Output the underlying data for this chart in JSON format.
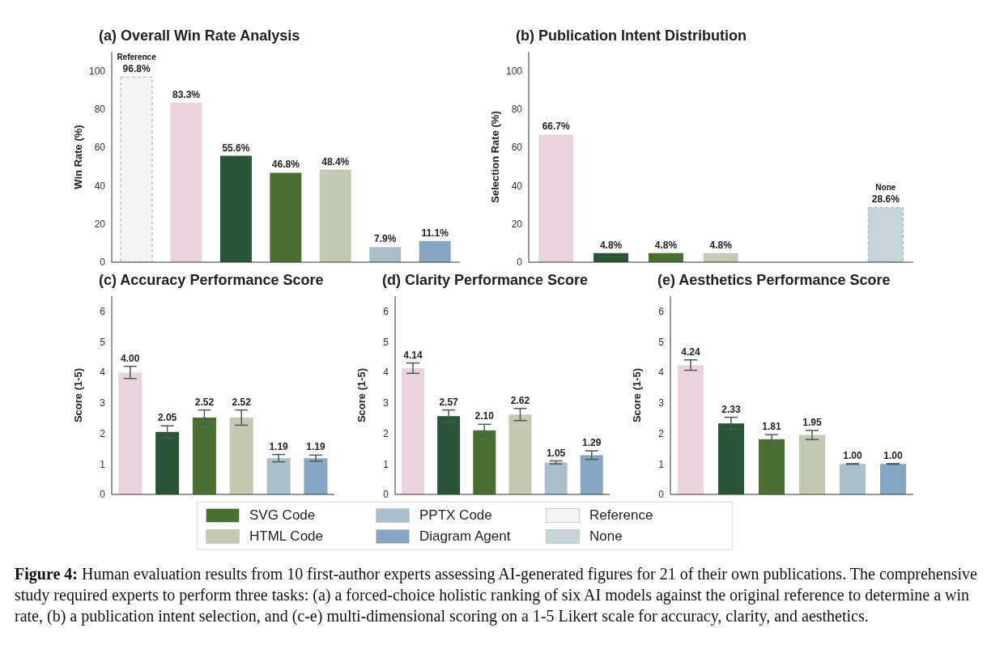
{
  "chart_data": [
    {
      "type": "bar",
      "title": "(a) Overall Win Rate Analysis",
      "ylabel": "Win Rate (%)",
      "categories": [
        null,
        null,
        null,
        null,
        null,
        null,
        null
      ],
      "ylim": [
        0,
        110
      ],
      "yticks": [
        0,
        20,
        40,
        60,
        80,
        100
      ],
      "tick_labels": "y",
      "annotations": [
        "Reference"
      ],
      "legend": "bottom",
      "series": [
        {
          "color": "#ead3dc",
          "values": [
            null,
            83.3,
            null,
            null,
            null,
            null,
            null
          ],
          "value_labels": [
            null,
            "83.3%",
            null,
            null,
            null,
            null,
            null
          ]
        },
        {
          "color": "#2b5537",
          "values": [
            null,
            null,
            55.6,
            null,
            null,
            null,
            null
          ],
          "value_labels": [
            null,
            null,
            "55.6%",
            null,
            null,
            null,
            null
          ]
        },
        {
          "name": "SVG Code",
          "color": "#4a7031",
          "values": [
            null,
            null,
            null,
            46.8,
            null,
            null,
            null
          ],
          "value_labels": [
            null,
            null,
            null,
            "46.8%",
            null,
            null,
            null
          ]
        },
        {
          "name": "HTML Code",
          "color": "#c4c9b1",
          "values": [
            null,
            null,
            null,
            null,
            48.4,
            null,
            null
          ],
          "value_labels": [
            null,
            null,
            null,
            null,
            "48.4%",
            null,
            null
          ]
        },
        {
          "name": "PPTX Code",
          "color": "#a9c0cc",
          "values": [
            null,
            null,
            null,
            null,
            null,
            7.9,
            null
          ],
          "value_labels": [
            null,
            null,
            null,
            null,
            null,
            "7.9%",
            null
          ]
        },
        {
          "name": "Diagram Agent",
          "color": "#86a6c4",
          "values": [
            null,
            null,
            null,
            null,
            null,
            null,
            11.1
          ],
          "value_labels": [
            null,
            null,
            null,
            null,
            null,
            null,
            "11.1%"
          ]
        },
        {
          "name": "Reference",
          "color": "#f4f4f4",
          "values": [
            96.8,
            null,
            null,
            null,
            null,
            null,
            null
          ],
          "value_labels": [
            "96.8%",
            null,
            null,
            null,
            null,
            null,
            null
          ]
        }
      ]
    },
    {
      "type": "bar",
      "title": "(b) Publication Intent Distribution",
      "ylabel": "Selection Rate (%)",
      "categories": [
        null,
        null,
        null,
        null,
        null,
        null,
        null
      ],
      "ylim": [
        0,
        110
      ],
      "yticks": [
        0,
        20,
        40,
        60,
        80,
        100
      ],
      "tick_labels": "y",
      "annotations": [
        "None"
      ],
      "series": [
        {
          "color": "#ead3dc",
          "values": [
            66.7,
            null,
            null,
            null,
            null,
            null,
            null
          ],
          "value_labels": [
            "66.7%",
            null,
            null,
            null,
            null,
            null,
            null
          ]
        },
        {
          "color": "#2b5537",
          "values": [
            null,
            4.8,
            null,
            null,
            null,
            null,
            null
          ],
          "value_labels": [
            null,
            "4.8%",
            null,
            null,
            null,
            null,
            null
          ]
        },
        {
          "name": "SVG Code",
          "color": "#4a7031",
          "values": [
            null,
            null,
            4.8,
            null,
            null,
            null,
            null
          ],
          "value_labels": [
            null,
            null,
            "4.8%",
            null,
            null,
            null,
            null
          ]
        },
        {
          "name": "HTML Code",
          "color": "#c4c9b1",
          "values": [
            null,
            null,
            null,
            4.8,
            null,
            null,
            null
          ],
          "value_labels": [
            null,
            null,
            null,
            "4.8%",
            null,
            null,
            null
          ]
        },
        {
          "name": "None",
          "color": "#c8d4dc",
          "values": [
            null,
            null,
            null,
            null,
            null,
            null,
            28.6
          ],
          "value_labels": [
            null,
            null,
            null,
            null,
            null,
            null,
            "28.6%"
          ]
        }
      ]
    },
    {
      "type": "bar",
      "title": "(c) Accuracy Performance Score",
      "ylabel": "Score (1-5)",
      "categories": [
        null,
        null,
        null,
        null,
        null,
        null
      ],
      "ylim": [
        0,
        6.5
      ],
      "yticks": [
        0,
        1,
        2,
        3,
        4,
        5,
        6
      ],
      "tick_labels": "y",
      "series": [
        {
          "color": "#ead3dc",
          "values": [
            4.0,
            null,
            null,
            null,
            null,
            null
          ],
          "errors": [
            0.2,
            null,
            null,
            null,
            null,
            null
          ],
          "value_labels": [
            "4.00",
            null,
            null,
            null,
            null,
            null
          ]
        },
        {
          "color": "#2b5537",
          "values": [
            null,
            2.05,
            null,
            null,
            null,
            null
          ],
          "errors": [
            null,
            0.2,
            null,
            null,
            null,
            null
          ],
          "value_labels": [
            null,
            "2.05",
            null,
            null,
            null,
            null
          ]
        },
        {
          "name": "SVG Code",
          "color": "#4a7031",
          "values": [
            null,
            null,
            2.52,
            null,
            null,
            null
          ],
          "errors": [
            null,
            null,
            0.25,
            null,
            null,
            null
          ],
          "value_labels": [
            null,
            null,
            "2.52",
            null,
            null,
            null
          ]
        },
        {
          "name": "HTML Code",
          "color": "#c4c9b1",
          "values": [
            null,
            null,
            null,
            2.52,
            null,
            null
          ],
          "errors": [
            null,
            null,
            null,
            0.25,
            null,
            null
          ],
          "value_labels": [
            null,
            null,
            null,
            "2.52",
            null,
            null
          ]
        },
        {
          "name": "PPTX Code",
          "color": "#a9c0cc",
          "values": [
            null,
            null,
            null,
            null,
            1.19,
            null
          ],
          "errors": [
            null,
            null,
            null,
            null,
            0.12,
            null
          ],
          "value_labels": [
            null,
            null,
            null,
            null,
            "1.19",
            null
          ]
        },
        {
          "name": "Diagram Agent",
          "color": "#86a6c4",
          "values": [
            null,
            null,
            null,
            null,
            null,
            1.19
          ],
          "errors": [
            null,
            null,
            null,
            null,
            null,
            0.1
          ],
          "value_labels": [
            null,
            null,
            null,
            null,
            null,
            "1.19"
          ]
        }
      ]
    },
    {
      "type": "bar",
      "title": "(d) Clarity Performance Score",
      "ylabel": "Score (1-5)",
      "categories": [
        null,
        null,
        null,
        null,
        null,
        null
      ],
      "ylim": [
        0,
        6.5
      ],
      "yticks": [
        0,
        1,
        2,
        3,
        4,
        5,
        6
      ],
      "tick_labels": "y",
      "series": [
        {
          "color": "#ead3dc",
          "values": [
            4.14,
            null,
            null,
            null,
            null,
            null
          ],
          "errors": [
            0.17,
            null,
            null,
            null,
            null,
            null
          ],
          "value_labels": [
            "4.14",
            null,
            null,
            null,
            null,
            null
          ]
        },
        {
          "color": "#2b5537",
          "values": [
            null,
            2.57,
            null,
            null,
            null,
            null
          ],
          "errors": [
            null,
            0.2,
            null,
            null,
            null,
            null
          ],
          "value_labels": [
            null,
            "2.57",
            null,
            null,
            null,
            null
          ]
        },
        {
          "name": "SVG Code",
          "color": "#4a7031",
          "values": [
            null,
            null,
            2.1,
            null,
            null,
            null
          ],
          "errors": [
            null,
            null,
            0.2,
            null,
            null,
            null
          ],
          "value_labels": [
            null,
            null,
            "2.10",
            null,
            null,
            null
          ]
        },
        {
          "name": "HTML Code",
          "color": "#c4c9b1",
          "values": [
            null,
            null,
            null,
            2.62,
            null,
            null
          ],
          "errors": [
            null,
            null,
            null,
            0.2,
            null,
            null
          ],
          "value_labels": [
            null,
            null,
            null,
            "2.62",
            null,
            null
          ]
        },
        {
          "name": "PPTX Code",
          "color": "#a9c0cc",
          "values": [
            null,
            null,
            null,
            null,
            1.05,
            null
          ],
          "errors": [
            null,
            null,
            null,
            null,
            0.05,
            null
          ],
          "value_labels": [
            null,
            null,
            null,
            null,
            "1.05",
            null
          ]
        },
        {
          "name": "Diagram Agent",
          "color": "#86a6c4",
          "values": [
            null,
            null,
            null,
            null,
            null,
            1.29
          ],
          "errors": [
            null,
            null,
            null,
            null,
            null,
            0.14
          ],
          "value_labels": [
            null,
            null,
            null,
            null,
            null,
            "1.29"
          ]
        }
      ]
    },
    {
      "type": "bar",
      "title": "(e) Aesthetics Performance Score",
      "ylabel": "Score (1-5)",
      "categories": [
        null,
        null,
        null,
        null,
        null,
        null
      ],
      "ylim": [
        0,
        6.5
      ],
      "yticks": [
        0,
        1,
        2,
        3,
        4,
        5,
        6
      ],
      "tick_labels": "y",
      "annotations": [
        "Figure 4: Human evaluation results from 10 first-author experts assessing AI-generated figures for 21 of their own publications. The comprehensive study required experts to perform three tasks: (a) a forced-choice holistic ranking of six AI models against the original reference to determine a win rate, (b) a publication intent selection, and (c-e) multi-dimensional scoring on a 1-5 Likert scale for accuracy, clarity, and aesthetics."
      ],
      "series": [
        {
          "color": "#ead3dc",
          "values": [
            4.24,
            null,
            null,
            null,
            null,
            null
          ],
          "errors": [
            0.17,
            null,
            null,
            null,
            null,
            null
          ],
          "value_labels": [
            "4.24",
            null,
            null,
            null,
            null,
            null
          ]
        },
        {
          "color": "#2b5537",
          "values": [
            null,
            2.33,
            null,
            null,
            null,
            null
          ],
          "errors": [
            null,
            0.2,
            null,
            null,
            null,
            null
          ],
          "value_labels": [
            null,
            "2.33",
            null,
            null,
            null,
            null
          ]
        },
        {
          "name": "SVG Code",
          "color": "#4a7031",
          "values": [
            null,
            null,
            1.81,
            null,
            null,
            null
          ],
          "errors": [
            null,
            null,
            0.15,
            null,
            null,
            null
          ],
          "value_labels": [
            null,
            null,
            "1.81",
            null,
            null,
            null
          ]
        },
        {
          "name": "HTML Code",
          "color": "#c4c9b1",
          "values": [
            null,
            null,
            null,
            1.95,
            null,
            null
          ],
          "errors": [
            null,
            null,
            null,
            0.15,
            null,
            null
          ],
          "value_labels": [
            null,
            null,
            null,
            "1.95",
            null,
            null
          ]
        },
        {
          "name": "PPTX Code",
          "color": "#a9c0cc",
          "values": [
            null,
            null,
            null,
            null,
            1.0,
            null
          ],
          "errors": [
            null,
            null,
            null,
            null,
            0.01,
            null
          ],
          "value_labels": [
            null,
            null,
            null,
            null,
            "1.00",
            null
          ]
        },
        {
          "name": "Diagram Agent",
          "color": "#86a6c4",
          "values": [
            null,
            null,
            null,
            null,
            null,
            1.0
          ],
          "errors": [
            null,
            null,
            null,
            null,
            null,
            0.01
          ],
          "value_labels": [
            null,
            null,
            null,
            null,
            null,
            "1.00"
          ]
        }
      ]
    }
  ]
}
